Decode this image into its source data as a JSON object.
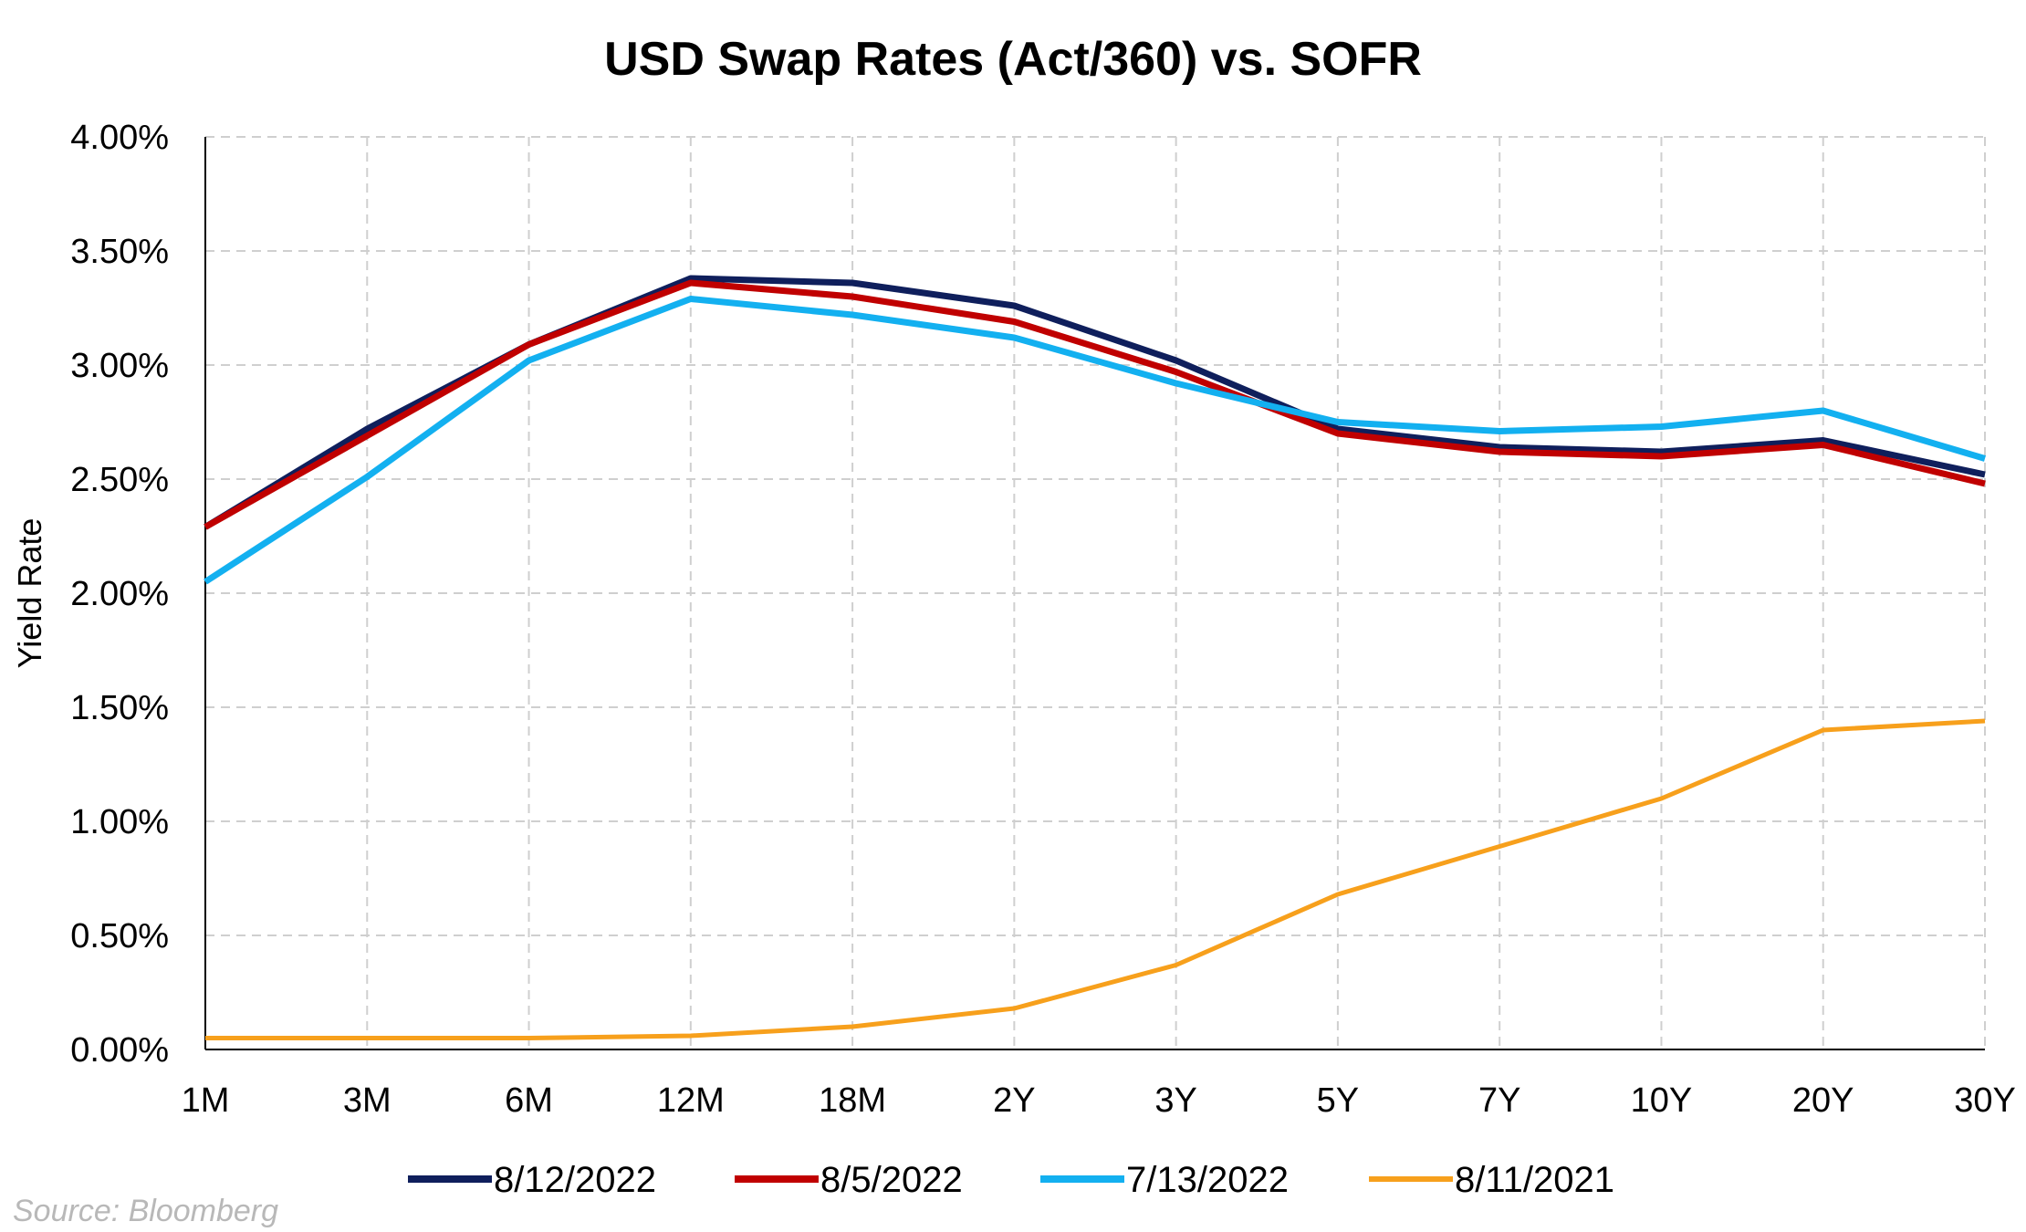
{
  "chart_data": {
    "type": "line",
    "title": "USD Swap Rates (Act/360) vs. SOFR",
    "xlabel": "",
    "ylabel": "Yield Rate",
    "categories": [
      "1M",
      "3M",
      "6M",
      "12M",
      "18M",
      "2Y",
      "3Y",
      "5Y",
      "7Y",
      "10Y",
      "20Y",
      "30Y"
    ],
    "yticks": [
      "0.00%",
      "0.50%",
      "1.00%",
      "1.50%",
      "2.00%",
      "2.50%",
      "3.00%",
      "3.50%",
      "4.00%"
    ],
    "ylim": [
      0,
      4
    ],
    "grid": true,
    "legend_position": "bottom",
    "series": [
      {
        "name": "8/12/2022",
        "color": "#0f1f5c",
        "values": [
          2.29,
          2.72,
          3.09,
          3.38,
          3.36,
          3.26,
          3.02,
          2.72,
          2.64,
          2.62,
          2.67,
          2.52
        ]
      },
      {
        "name": "8/5/2022",
        "color": "#c00000",
        "values": [
          2.29,
          2.69,
          3.09,
          3.36,
          3.3,
          3.19,
          2.97,
          2.7,
          2.62,
          2.6,
          2.65,
          2.48
        ]
      },
      {
        "name": "7/13/2022",
        "color": "#13b0f0",
        "values": [
          2.05,
          2.51,
          3.02,
          3.29,
          3.22,
          3.12,
          2.92,
          2.75,
          2.71,
          2.73,
          2.8,
          2.59
        ]
      },
      {
        "name": "8/11/2021",
        "color": "#f7a01c",
        "values": [
          0.05,
          0.05,
          0.05,
          0.06,
          0.1,
          0.18,
          0.37,
          0.68,
          0.89,
          1.1,
          1.4,
          1.44
        ]
      }
    ]
  },
  "source": "Source: Bloomberg"
}
